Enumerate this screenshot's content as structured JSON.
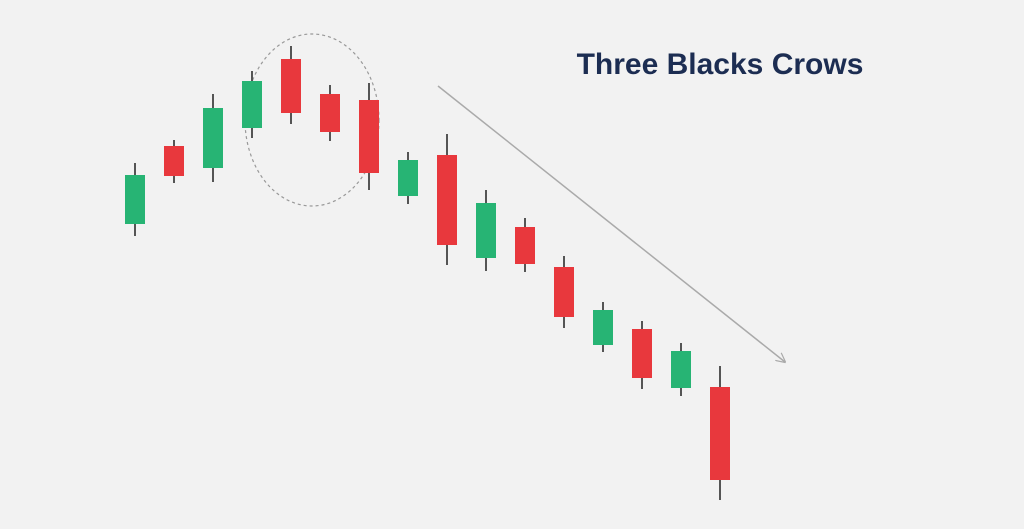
{
  "chart_data": {
    "type": "candlestick",
    "title": "Three Blacks Crows",
    "categories": [
      null,
      null,
      null,
      null,
      null,
      null,
      null,
      null,
      null,
      null,
      null,
      null,
      null,
      null,
      null,
      null
    ],
    "open": [
      305,
      383,
      361,
      401,
      470,
      435,
      429,
      333,
      374,
      271,
      302,
      262,
      184,
      200,
      141,
      142
    ],
    "high": [
      366,
      389,
      435,
      458,
      483,
      444,
      446,
      377,
      395,
      339,
      311,
      273,
      227,
      208,
      186,
      163
    ],
    "low": [
      293,
      346,
      347,
      391,
      405,
      388,
      339,
      325,
      264,
      258,
      257,
      201,
      177,
      140,
      133,
      29
    ],
    "close": [
      354,
      353,
      421,
      448,
      416,
      397,
      356,
      369,
      284,
      326,
      265,
      212,
      219,
      151,
      178,
      49
    ],
    "up_color": "#27b474",
    "down_color": "#e8383d",
    "ylim": [
      0,
      529
    ]
  }
}
